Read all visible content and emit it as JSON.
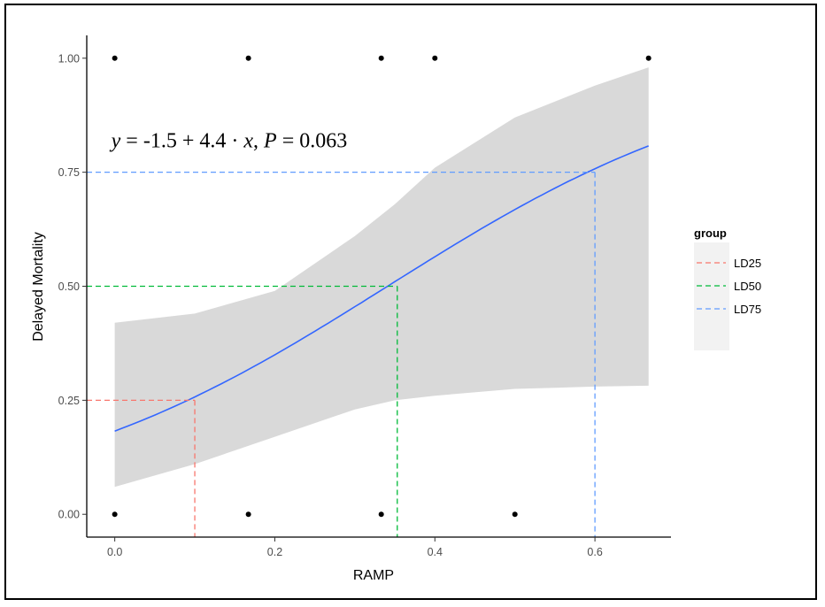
{
  "chart_data": {
    "type": "scatter",
    "xlabel": "RAMP",
    "ylabel": "Delayed Mortality",
    "xlim": [
      -0.035,
      0.695
    ],
    "ylim": [
      -0.05,
      1.05
    ],
    "x_ticks": [
      0.0,
      0.2,
      0.4,
      0.6
    ],
    "x_tick_labels": [
      "0.0",
      "0.2",
      "0.4",
      "0.6"
    ],
    "y_ticks": [
      0.0,
      0.25,
      0.5,
      0.75,
      1.0
    ],
    "y_tick_labels": [
      "0.00",
      "0.25",
      "0.50",
      "0.75",
      "1.00"
    ],
    "grid": false,
    "legend_position": "right",
    "points": [
      {
        "x": 0.0,
        "y": 1
      },
      {
        "x": 0.167,
        "y": 1
      },
      {
        "x": 0.333,
        "y": 1
      },
      {
        "x": 0.4,
        "y": 1
      },
      {
        "x": 0.667,
        "y": 1
      },
      {
        "x": 0.0,
        "y": 0
      },
      {
        "x": 0.167,
        "y": 0
      },
      {
        "x": 0.333,
        "y": 0
      },
      {
        "x": 0.5,
        "y": 0
      }
    ],
    "fit": {
      "intercept": -1.5,
      "slope": 4.4,
      "x_range": [
        0.0,
        0.667
      ],
      "line_color": "#3366FF",
      "band_color": "#D9D9D9",
      "band": {
        "x": [
          0.0,
          0.1,
          0.2,
          0.3,
          0.35,
          0.4,
          0.5,
          0.6,
          0.667
        ],
        "lower": [
          0.06,
          0.11,
          0.17,
          0.23,
          0.25,
          0.26,
          0.275,
          0.28,
          0.282
        ],
        "upper": [
          0.42,
          0.44,
          0.49,
          0.61,
          0.68,
          0.76,
          0.87,
          0.94,
          0.98
        ]
      }
    },
    "annotation": {
      "parts": [
        "y",
        " = -1.5 + 4.4 · ",
        "x",
        ",  ",
        "P",
        " = 0.063"
      ],
      "x": 0.0,
      "y": 0.805
    },
    "legend": {
      "title": "group",
      "items": [
        {
          "label": "LD25",
          "color": "#F8766D",
          "x": 0.1,
          "y": 0.25
        },
        {
          "label": "LD50",
          "color": "#00BA38",
          "x": 0.353,
          "y": 0.5
        },
        {
          "label": "LD75",
          "color": "#619CFF",
          "x": 0.6,
          "y": 0.75
        }
      ]
    }
  }
}
